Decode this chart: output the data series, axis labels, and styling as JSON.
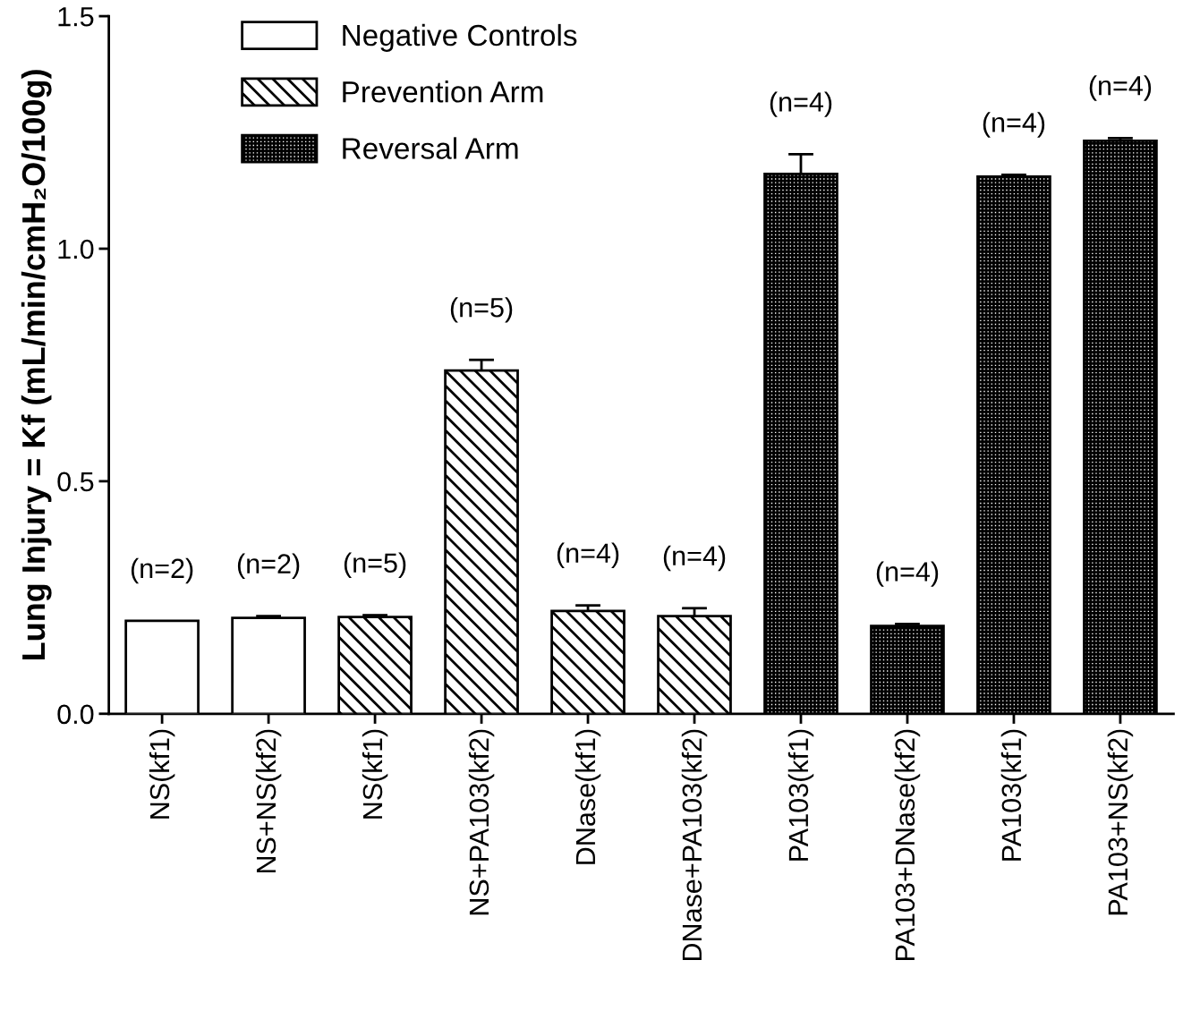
{
  "chart_data": {
    "type": "bar",
    "ylabel": "Lung Injury = Kf (mL/min/cmH₂O/100g)",
    "categories": [
      "NS(kf1)",
      "NS+NS(kf2)",
      "NS(kf1)",
      "NS+PA103(kf2)",
      "DNase(kf1)",
      "DNase+PA103(kf2)",
      "PA103(kf1)",
      "PA103+DNase(kf2)",
      "PA103(kf1)",
      "PA103+NS(kf2)"
    ],
    "series": [
      {
        "name": "Negative Controls",
        "color": "#ffffff",
        "values": [
          0.2,
          0.206,
          null,
          null,
          null,
          null,
          null,
          null,
          null,
          null
        ],
        "errors": [
          null,
          0.004,
          null,
          null,
          null,
          null,
          null,
          null,
          null,
          null
        ]
      },
      {
        "name": "Prevention Arm",
        "color": "#000000",
        "values": [
          null,
          null,
          0.208,
          0.738,
          0.221,
          0.21,
          null,
          null,
          null,
          null
        ],
        "errors": [
          null,
          null,
          0.004,
          0.023,
          0.012,
          0.017,
          null,
          null,
          null,
          null
        ]
      },
      {
        "name": "Reversal Arm",
        "color": "#000000",
        "values": [
          null,
          null,
          null,
          null,
          null,
          null,
          1.161,
          0.189,
          1.155,
          1.232
        ],
        "errors": [
          null,
          null,
          null,
          null,
          null,
          null,
          0.042,
          0.004,
          0.004,
          0.006
        ]
      }
    ],
    "annotations": [
      "(n=2)",
      "(n=2)",
      "(n=5)",
      "(n=5)",
      "(n=4)",
      "(n=4)",
      "(n=4)",
      "(n=4)",
      "(n=4)",
      "(n=4)"
    ],
    "ylim": [
      0,
      1.5
    ],
    "yticks": [
      {
        "value": 0,
        "label": "0.0"
      },
      0.5,
      {
        "value": 1,
        "label": "1.0"
      },
      1.5
    ],
    "legend": "top left",
    "grid": false
  }
}
